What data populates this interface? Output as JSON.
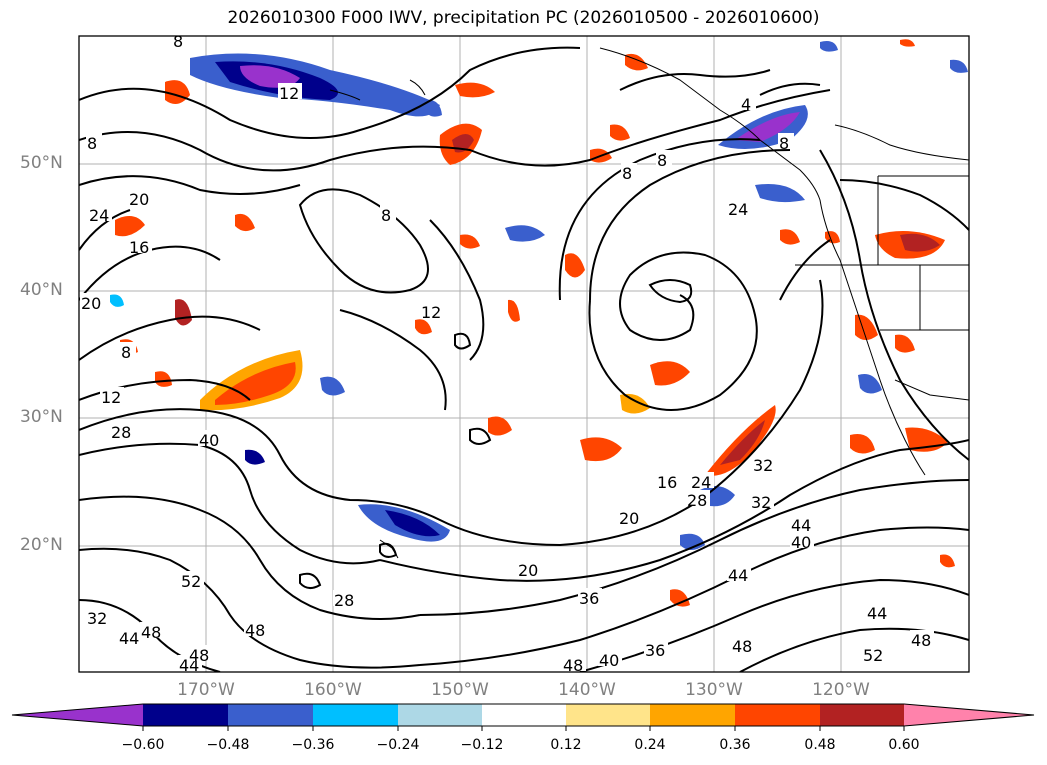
{
  "title": "2026010300 F000 IWV, precipitation PC (2026010500 - 2026010600)",
  "lat_labels": [
    "50°N",
    "40°N",
    "30°N",
    "20°N"
  ],
  "lon_labels": [
    "170°W",
    "160°W",
    "150°W",
    "140°W",
    "130°W",
    "120°W"
  ],
  "colorbar": {
    "colors": [
      "#9932CC",
      "#00008B",
      "#3A5FCD",
      "#00BFFF",
      "#ADD8E6",
      "#FFFFFF",
      "#FFE48A",
      "#FFA500",
      "#FF4500",
      "#B22222",
      "#FF82AB"
    ],
    "labels": [
      "−0.60",
      "−0.48",
      "−0.36",
      "−0.24",
      "−0.12",
      "0.12",
      "0.24",
      "0.36",
      "0.48",
      "0.60"
    ]
  },
  "contour_labels": [
    "8",
    "12",
    "4",
    "8",
    "8",
    "24",
    "8",
    "16",
    "20",
    "24",
    "8",
    "12",
    "12",
    "20",
    "28",
    "40",
    "8",
    "8",
    "32",
    "16",
    "24",
    "28",
    "20",
    "32",
    "40",
    "44",
    "20",
    "36",
    "28",
    "48",
    "52",
    "32",
    "44",
    "48",
    "44",
    "48",
    "48",
    "40",
    "36",
    "48",
    "44",
    "48",
    "52",
    "44"
  ]
}
